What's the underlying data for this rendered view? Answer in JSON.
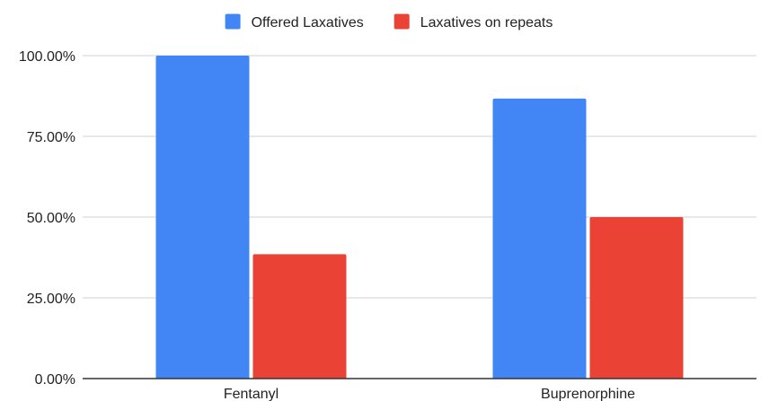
{
  "chart_data": {
    "type": "bar",
    "title": "",
    "xlabel": "",
    "ylabel": "",
    "categories": [
      "Fentanyl",
      "Buprenorphine"
    ],
    "series": [
      {
        "name": "Offered Laxatives",
        "values": [
          100,
          86.7
        ],
        "color": "#4285f4"
      },
      {
        "name": "Laxatives on repeats",
        "values": [
          38.5,
          50
        ],
        "color": "#ea4335"
      }
    ],
    "ylim": [
      0,
      100
    ],
    "yticks": [
      0,
      25,
      50,
      75,
      100
    ],
    "ytick_labels": [
      "0.00%",
      "25.00%",
      "50.00%",
      "75.00%",
      "100.00%"
    ],
    "grid": true,
    "legend_position": "top-center"
  }
}
